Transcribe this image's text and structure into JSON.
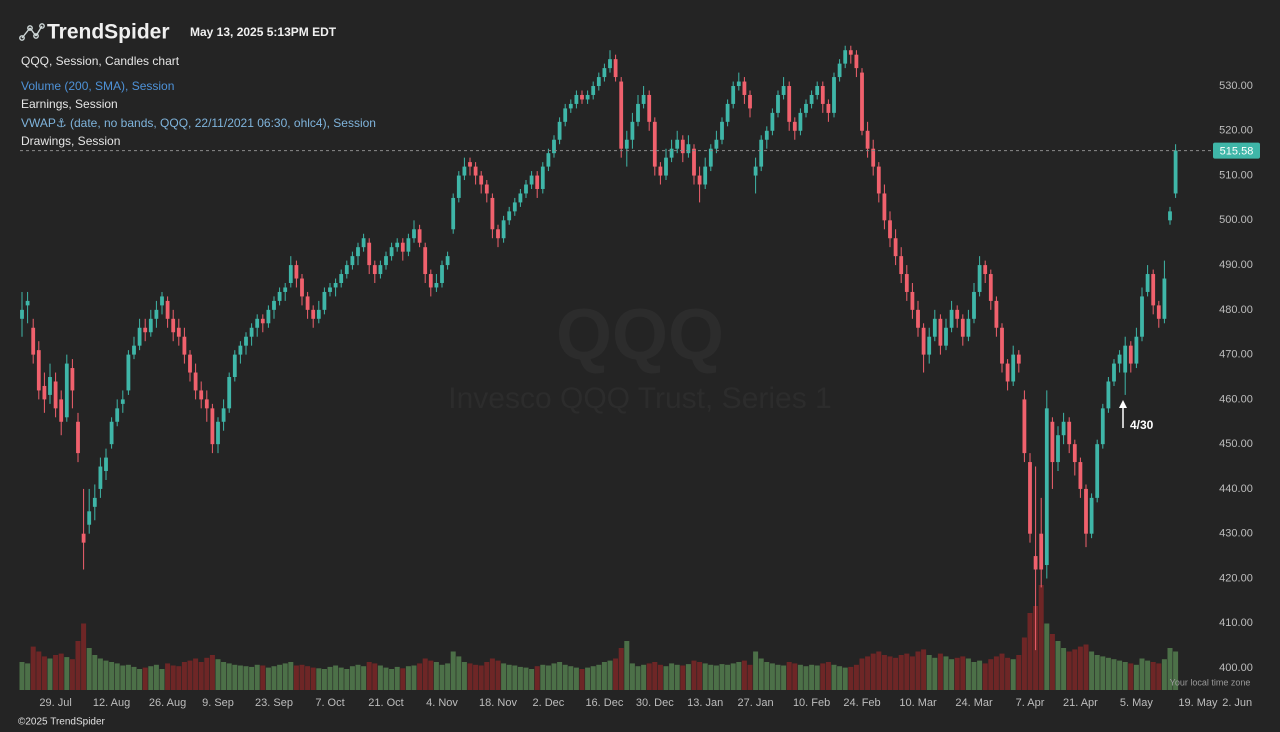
{
  "header": {
    "logo": "TrendSpider",
    "timestamp": "May 13, 2025 5:13PM EDT"
  },
  "legend": [
    "QQQ, Session, Candles chart",
    "Volume (200, SMA), Session",
    "Earnings, Session",
    "VWAP⚓ (date, no bands, QQQ, 22/11/2021 06:30, ohlc4), Session",
    "Drawings, Session"
  ],
  "chart_data": {
    "type": "candlestick",
    "symbol": "QQQ",
    "symbol_name": "Invesco QQQ Trust, Series 1",
    "up_color": "#3fb6a8",
    "down_color": "#f0616d",
    "volume_up_color": "#4c7048",
    "volume_down_color": "#6e2626",
    "ohlc": [
      [
        478,
        484,
        474,
        480
      ],
      [
        481,
        484,
        477,
        482
      ],
      [
        476,
        478,
        468,
        470
      ],
      [
        471,
        473,
        460,
        462
      ],
      [
        463,
        466,
        457,
        460
      ],
      [
        461,
        468,
        459,
        465
      ],
      [
        464,
        466,
        456,
        458
      ],
      [
        460,
        462,
        452,
        455
      ],
      [
        456,
        470,
        455,
        468
      ],
      [
        467,
        469,
        458,
        462
      ],
      [
        455,
        457,
        446,
        448
      ],
      [
        430,
        440,
        422,
        428
      ],
      [
        432,
        440,
        430,
        435
      ],
      [
        436,
        441,
        433,
        438
      ],
      [
        440,
        447,
        438,
        445
      ],
      [
        444,
        449,
        442,
        447
      ],
      [
        450,
        456,
        449,
        455
      ],
      [
        455,
        460,
        454,
        458
      ],
      [
        459,
        462,
        457,
        460
      ],
      [
        462,
        471,
        461,
        470
      ],
      [
        470,
        474,
        469,
        472
      ],
      [
        472,
        478,
        471,
        476
      ],
      [
        476,
        478,
        473,
        475
      ],
      [
        475,
        480,
        474,
        478
      ],
      [
        478,
        482,
        476,
        480
      ],
      [
        481,
        484,
        479,
        483
      ],
      [
        482,
        483,
        476,
        478
      ],
      [
        478,
        480,
        473,
        475
      ],
      [
        476,
        478,
        472,
        474
      ],
      [
        474,
        476,
        468,
        470
      ],
      [
        470,
        471,
        464,
        466
      ],
      [
        466,
        468,
        460,
        462
      ],
      [
        462,
        464,
        458,
        460
      ],
      [
        460,
        462,
        455,
        458
      ],
      [
        458,
        459,
        448,
        450
      ],
      [
        450,
        456,
        448,
        455
      ],
      [
        455,
        460,
        453,
        458
      ],
      [
        458,
        466,
        457,
        465
      ],
      [
        465,
        471,
        464,
        470
      ],
      [
        470,
        473,
        468,
        472
      ],
      [
        472,
        475,
        470,
        474
      ],
      [
        474,
        477,
        472,
        476
      ],
      [
        476,
        479,
        474,
        478
      ],
      [
        478,
        479,
        475,
        477
      ],
      [
        477,
        481,
        476,
        480
      ],
      [
        480,
        483,
        478,
        482
      ],
      [
        482,
        485,
        481,
        484
      ],
      [
        484,
        486,
        482,
        485
      ],
      [
        486,
        492,
        485,
        490
      ],
      [
        490,
        491,
        485,
        487
      ],
      [
        487,
        488,
        481,
        483
      ],
      [
        483,
        484,
        478,
        480
      ],
      [
        480,
        481,
        476,
        478
      ],
      [
        478,
        482,
        477,
        480
      ],
      [
        480,
        485,
        479,
        484
      ],
      [
        484,
        486,
        483,
        485
      ],
      [
        485,
        487,
        483,
        486
      ],
      [
        486,
        489,
        485,
        488
      ],
      [
        488,
        491,
        487,
        490
      ],
      [
        490,
        493,
        489,
        492
      ],
      [
        492,
        495,
        490,
        494
      ],
      [
        494,
        497,
        493,
        496
      ],
      [
        495,
        496,
        488,
        490
      ],
      [
        490,
        491,
        486,
        488
      ],
      [
        488,
        491,
        487,
        490
      ],
      [
        490,
        493,
        489,
        492
      ],
      [
        492,
        495,
        491,
        494
      ],
      [
        494,
        496,
        493,
        495
      ],
      [
        495,
        496,
        491,
        493
      ],
      [
        493,
        497,
        492,
        496
      ],
      [
        496,
        500,
        495,
        498
      ],
      [
        498,
        499,
        494,
        495
      ],
      [
        494,
        495,
        486,
        488
      ],
      [
        488,
        489,
        483,
        485
      ],
      [
        485,
        488,
        484,
        486
      ],
      [
        486,
        491,
        485,
        490
      ],
      [
        490,
        493,
        489,
        492
      ],
      [
        498,
        506,
        497,
        505
      ],
      [
        505,
        511,
        504,
        510
      ],
      [
        510,
        514,
        509,
        512
      ],
      [
        513,
        514,
        510,
        512
      ],
      [
        512,
        513,
        508,
        510
      ],
      [
        510,
        511,
        506,
        508
      ],
      [
        508,
        509,
        504,
        506
      ],
      [
        505,
        506,
        496,
        498
      ],
      [
        498,
        499,
        494,
        496
      ],
      [
        496,
        501,
        495,
        500
      ],
      [
        500,
        503,
        499,
        502
      ],
      [
        502,
        505,
        501,
        504
      ],
      [
        504,
        507,
        503,
        506
      ],
      [
        506,
        509,
        505,
        508
      ],
      [
        508,
        511,
        507,
        510
      ],
      [
        510,
        511,
        505,
        507
      ],
      [
        507,
        513,
        506,
        512
      ],
      [
        512,
        516,
        511,
        515
      ],
      [
        515,
        519,
        514,
        518
      ],
      [
        518,
        523,
        517,
        522
      ],
      [
        522,
        526,
        521,
        525
      ],
      [
        525,
        527,
        524,
        526
      ],
      [
        526,
        529,
        525,
        528
      ],
      [
        528,
        529,
        526,
        527
      ],
      [
        527,
        529,
        526,
        528
      ],
      [
        528,
        531,
        527,
        530
      ],
      [
        530,
        533,
        529,
        532
      ],
      [
        532,
        535,
        531,
        534
      ],
      [
        534,
        538,
        533,
        536
      ],
      [
        536,
        537,
        531,
        532
      ],
      [
        531,
        532,
        514,
        516
      ],
      [
        516,
        520,
        512,
        518
      ],
      [
        518,
        524,
        516,
        522
      ],
      [
        522,
        528,
        521,
        526
      ],
      [
        526,
        530,
        525,
        528
      ],
      [
        528,
        529,
        520,
        522
      ],
      [
        522,
        523,
        510,
        512
      ],
      [
        512,
        513,
        508,
        510
      ],
      [
        510,
        516,
        509,
        514
      ],
      [
        514,
        518,
        513,
        516
      ],
      [
        516,
        520,
        515,
        518
      ],
      [
        518,
        519,
        513,
        515
      ],
      [
        515,
        519,
        514,
        517
      ],
      [
        516,
        517,
        508,
        510
      ],
      [
        510,
        512,
        504,
        508
      ],
      [
        508,
        514,
        507,
        512
      ],
      [
        512,
        517,
        511,
        516
      ],
      [
        516,
        520,
        515,
        518
      ],
      [
        518,
        523,
        517,
        522
      ],
      [
        522,
        527,
        521,
        526
      ],
      [
        526,
        531,
        525,
        530
      ],
      [
        530,
        533,
        529,
        531
      ],
      [
        531,
        532,
        526,
        528
      ],
      [
        528,
        529,
        523,
        525
      ],
      [
        510,
        514,
        506,
        512
      ],
      [
        512,
        519,
        511,
        518
      ],
      [
        518,
        521,
        516,
        520
      ],
      [
        520,
        525,
        519,
        524
      ],
      [
        524,
        529,
        523,
        528
      ],
      [
        528,
        532,
        527,
        530
      ],
      [
        530,
        531,
        520,
        522
      ],
      [
        522,
        523,
        518,
        520
      ],
      [
        520,
        525,
        519,
        524
      ],
      [
        524,
        527,
        523,
        526
      ],
      [
        526,
        529,
        525,
        528
      ],
      [
        528,
        531,
        527,
        530
      ],
      [
        530,
        531,
        524,
        526
      ],
      [
        526,
        527,
        522,
        524
      ],
      [
        524,
        533,
        523,
        532
      ],
      [
        532,
        536,
        531,
        535
      ],
      [
        535,
        539,
        534,
        538
      ],
      [
        538,
        539,
        535,
        537
      ],
      [
        537,
        538,
        532,
        534
      ],
      [
        533,
        534,
        519,
        520
      ],
      [
        520,
        522,
        514,
        516
      ],
      [
        516,
        518,
        510,
        512
      ],
      [
        512,
        513,
        504,
        506
      ],
      [
        506,
        508,
        498,
        500
      ],
      [
        500,
        502,
        494,
        496
      ],
      [
        496,
        498,
        490,
        492
      ],
      [
        492,
        494,
        486,
        488
      ],
      [
        488,
        490,
        482,
        484
      ],
      [
        484,
        486,
        478,
        480
      ],
      [
        480,
        482,
        474,
        476
      ],
      [
        476,
        477,
        466,
        470
      ],
      [
        470,
        476,
        468,
        474
      ],
      [
        474,
        480,
        473,
        478
      ],
      [
        478,
        479,
        470,
        472
      ],
      [
        472,
        478,
        471,
        476
      ],
      [
        476,
        482,
        475,
        480
      ],
      [
        480,
        481,
        476,
        478
      ],
      [
        478,
        479,
        472,
        474
      ],
      [
        474,
        480,
        473,
        478
      ],
      [
        478,
        486,
        477,
        484
      ],
      [
        484,
        492,
        483,
        490
      ],
      [
        490,
        491,
        486,
        488
      ],
      [
        488,
        489,
        480,
        482
      ],
      [
        482,
        483,
        474,
        476
      ],
      [
        476,
        477,
        466,
        468
      ],
      [
        468,
        469,
        462,
        464
      ],
      [
        464,
        472,
        463,
        470
      ],
      [
        470,
        471,
        466,
        468
      ],
      [
        460,
        462,
        446,
        448
      ],
      [
        446,
        448,
        428,
        430
      ],
      [
        425,
        445,
        404,
        422
      ],
      [
        430,
        438,
        418,
        422
      ],
      [
        423,
        462,
        420,
        458
      ],
      [
        455,
        456,
        440,
        446
      ],
      [
        446,
        454,
        444,
        452
      ],
      [
        452,
        457,
        450,
        455
      ],
      [
        455,
        456,
        448,
        450
      ],
      [
        450,
        451,
        443,
        446
      ],
      [
        446,
        447,
        438,
        440
      ],
      [
        440,
        441,
        427,
        430
      ],
      [
        430,
        439,
        429,
        438
      ],
      [
        438,
        451,
        437,
        450
      ],
      [
        450,
        459,
        449,
        458
      ],
      [
        458,
        465,
        457,
        464
      ],
      [
        464,
        469,
        463,
        468
      ],
      [
        468,
        471,
        466,
        470
      ],
      [
        466,
        474,
        461,
        472
      ],
      [
        472,
        473,
        466,
        468
      ],
      [
        468,
        476,
        467,
        474
      ],
      [
        474,
        485,
        473,
        483
      ],
      [
        484,
        490,
        483,
        488
      ],
      [
        488,
        489,
        479,
        481
      ],
      [
        481,
        482,
        476,
        478
      ],
      [
        478,
        491,
        477,
        487
      ],
      [
        500,
        503,
        499,
        502
      ],
      [
        506,
        517,
        505,
        515.58
      ]
    ],
    "volume": [
      40,
      38,
      62,
      55,
      48,
      45,
      50,
      52,
      47,
      44,
      70,
      95,
      60,
      50,
      45,
      42,
      40,
      38,
      35,
      36,
      33,
      30,
      32,
      34,
      36,
      30,
      38,
      35,
      34,
      40,
      42,
      45,
      40,
      46,
      50,
      44,
      40,
      38,
      36,
      35,
      34,
      33,
      36,
      35,
      32,
      34,
      36,
      38,
      40,
      35,
      36,
      34,
      32,
      31,
      30,
      33,
      35,
      32,
      30,
      34,
      36,
      34,
      40,
      38,
      35,
      32,
      30,
      33,
      31,
      34,
      35,
      38,
      45,
      42,
      40,
      36,
      38,
      55,
      48,
      40,
      38,
      36,
      35,
      40,
      45,
      42,
      38,
      36,
      35,
      33,
      32,
      30,
      34,
      36,
      35,
      38,
      40,
      36,
      34,
      32,
      30,
      32,
      34,
      36,
      40,
      42,
      45,
      60,
      70,
      38,
      34,
      36,
      38,
      40,
      36,
      34,
      38,
      36,
      35,
      37,
      42,
      40,
      38,
      36,
      35,
      37,
      36,
      38,
      40,
      42,
      36,
      55,
      45,
      40,
      38,
      36,
      35,
      40,
      38,
      36,
      34,
      36,
      35,
      38,
      40,
      36,
      34,
      32,
      33,
      36,
      45,
      48,
      52,
      55,
      50,
      48,
      46,
      50,
      52,
      48,
      55,
      58,
      50,
      46,
      52,
      48,
      44,
      46,
      48,
      45,
      40,
      42,
      38,
      44,
      48,
      52,
      46,
      44,
      50,
      75,
      110,
      120,
      150,
      95,
      80,
      70,
      60,
      55,
      58,
      62,
      65,
      55,
      50,
      48,
      46,
      44,
      42,
      40,
      38,
      36,
      45,
      42,
      40,
      38,
      44,
      60,
      55
    ],
    "ylim": [
      396,
      542
    ],
    "yticks": [
      {
        "value": 400,
        "label": "400.00"
      },
      {
        "value": 410,
        "label": "410.00"
      },
      {
        "value": 420,
        "label": "420.00"
      },
      {
        "value": 430,
        "label": "430.00"
      },
      {
        "value": 440,
        "label": "440.00"
      },
      {
        "value": 450,
        "label": "450.00"
      },
      {
        "value": 460,
        "label": "460.00"
      },
      {
        "value": 470,
        "label": "470.00"
      },
      {
        "value": 480,
        "label": "480.00"
      },
      {
        "value": 490,
        "label": "490.00"
      },
      {
        "value": 500,
        "label": "500.00"
      },
      {
        "value": 510,
        "label": "510.00"
      },
      {
        "value": 520,
        "label": "520.00"
      },
      {
        "value": 530,
        "label": "530.00"
      }
    ],
    "xticks": [
      {
        "value": 6,
        "label": "29. Jul"
      },
      {
        "value": 16,
        "label": "12. Aug"
      },
      {
        "value": 26,
        "label": "26. Aug"
      },
      {
        "value": 35,
        "label": "9. Sep"
      },
      {
        "value": 45,
        "label": "23. Sep"
      },
      {
        "value": 55,
        "label": "7. Oct"
      },
      {
        "value": 65,
        "label": "21. Oct"
      },
      {
        "value": 75,
        "label": "4. Nov"
      },
      {
        "value": 85,
        "label": "18. Nov"
      },
      {
        "value": 94,
        "label": "2. Dec"
      },
      {
        "value": 104,
        "label": "16. Dec"
      },
      {
        "value": 113,
        "label": "30. Dec"
      },
      {
        "value": 122,
        "label": "13. Jan"
      },
      {
        "value": 131,
        "label": "27. Jan"
      },
      {
        "value": 141,
        "label": "10. Feb"
      },
      {
        "value": 150,
        "label": "24. Feb"
      },
      {
        "value": 160,
        "label": "10. Mar"
      },
      {
        "value": 170,
        "label": "24. Mar"
      },
      {
        "value": 180,
        "label": "7. Apr"
      },
      {
        "value": 189,
        "label": "21. Apr"
      },
      {
        "value": 199,
        "label": "5. May"
      },
      {
        "value": 210,
        "label": "19. May"
      },
      {
        "value": 217,
        "label": "2. Jun"
      }
    ],
    "last_price": 515.58,
    "annotation": "4/30",
    "timezone_note": "Your local time zone"
  },
  "footer": "©2025 TrendSpider"
}
